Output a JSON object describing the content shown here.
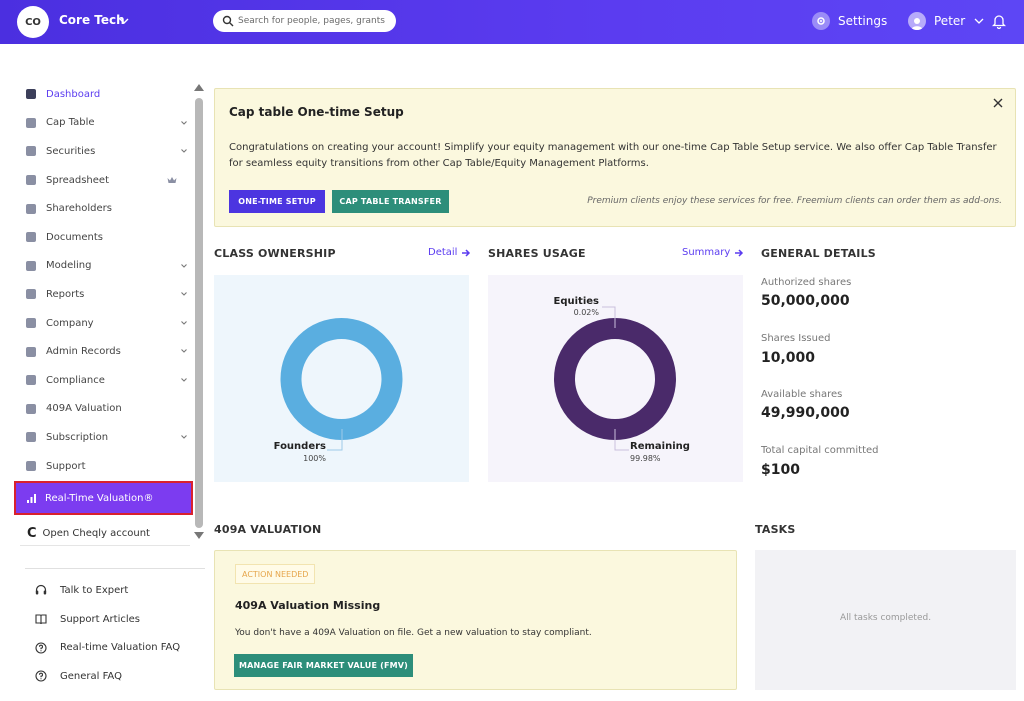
{
  "header": {
    "org_initials": "CO",
    "org_name": "Core Tech",
    "search_placeholder": "Search for people, pages, grants",
    "settings_label": "Settings",
    "user_name": "Peter"
  },
  "sidebar": {
    "items": [
      {
        "label": "Dashboard",
        "active": true,
        "expandable": false
      },
      {
        "label": "Cap Table",
        "expandable": true
      },
      {
        "label": "Securities",
        "expandable": true
      },
      {
        "label": "Spreadsheet",
        "expandable": false,
        "premium": true
      },
      {
        "label": "Shareholders",
        "expandable": false
      },
      {
        "label": "Documents",
        "expandable": false
      },
      {
        "label": "Modeling",
        "expandable": true
      },
      {
        "label": "Reports",
        "expandable": true
      },
      {
        "label": "Company",
        "expandable": true
      },
      {
        "label": "Admin Records",
        "expandable": true
      },
      {
        "label": "Compliance",
        "expandable": true
      },
      {
        "label": "409A Valuation",
        "expandable": false
      },
      {
        "label": "Subscription",
        "expandable": true
      },
      {
        "label": "Support",
        "expandable": false
      }
    ],
    "highlight_item": "Real-Time Valuation®",
    "cheqly_item": "Open Cheqly account",
    "help_items": [
      "Talk to Expert",
      "Support Articles",
      "Real-time Valuation FAQ",
      "General FAQ"
    ]
  },
  "banner": {
    "title": "Cap table One-time Setup",
    "text": "Congratulations on creating your account! Simplify your equity management with our one-time Cap Table Setup service. We also offer Cap Table Transfer for seamless equity transitions from other Cap Table/Equity Management Platforms.",
    "btn_setup": "ONE-TIME SETUP",
    "btn_transfer": "CAP TABLE TRANSFER",
    "note": "Premium clients enjoy these services for free. Freemium clients can order them as add-ons."
  },
  "class_ownership": {
    "title": "CLASS OWNERSHIP",
    "link": "Detail",
    "color": "#5aaee0",
    "slice_label": "Founders",
    "slice_pct": "100%"
  },
  "shares_usage": {
    "title": "SHARES USAGE",
    "link": "Summary",
    "color": "#4a2a6a",
    "label_a": "Equities",
    "pct_a": "0.02%",
    "label_b": "Remaining",
    "pct_b": "99.98%"
  },
  "general_details": {
    "title": "GENERAL DETAILS",
    "authorized_label": "Authorized shares",
    "authorized_value": "50,000,000",
    "issued_label": "Shares Issued",
    "issued_value": "10,000",
    "available_label": "Available shares",
    "available_value": "49,990,000",
    "capital_label": "Total capital committed",
    "capital_value": "$100"
  },
  "valuation": {
    "title": "409A VALUATION",
    "badge": "ACTION NEEDED",
    "card_title": "409A Valuation Missing",
    "card_text": "You don't have a 409A Valuation on file. Get a new valuation to stay compliant.",
    "button": "MANAGE FAIR MARKET VALUE (FMV)"
  },
  "tasks": {
    "title": "TASKS",
    "empty": "All tasks completed."
  },
  "colors": {
    "brand": "#5b3cf0",
    "teal_button": "#2d8e7a",
    "highlight": "#7c3cf0"
  }
}
